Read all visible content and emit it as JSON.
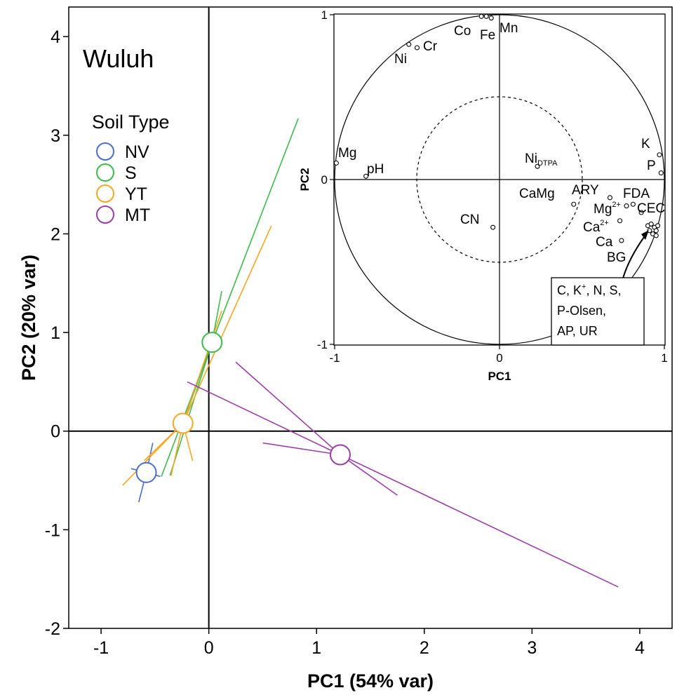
{
  "chart_data": [
    {
      "type": "scatter",
      "title": "Wuluh",
      "xlabel": "PC1 (54% var)",
      "ylabel": "PC2 (20% var)",
      "xlim": [
        -1.3,
        4.3
      ],
      "ylim": [
        -2.0,
        4.3
      ],
      "xticks": [
        -1,
        0,
        1,
        2,
        3,
        4
      ],
      "yticks": [
        -2,
        -1,
        0,
        1,
        2,
        3,
        4
      ],
      "legend": {
        "title": "Soil Type",
        "placement": "top-left"
      },
      "series": [
        {
          "name": "NV",
          "color": "#4a6ec9",
          "centroid": [
            -0.58,
            -0.42
          ],
          "spokes": [
            [
              -0.65,
              -0.72
            ],
            [
              -0.52,
              -0.12
            ],
            [
              -0.72,
              -0.38
            ],
            [
              -0.45,
              -0.46
            ]
          ]
        },
        {
          "name": "S",
          "color": "#3dbb4c",
          "centroid": [
            0.03,
            0.9
          ],
          "spokes": [
            [
              0.83,
              3.17
            ],
            [
              0.12,
              1.42
            ],
            [
              -0.36,
              -0.45
            ],
            [
              -0.44,
              -0.46
            ],
            [
              -0.2,
              0.2
            ]
          ]
        },
        {
          "name": "YT",
          "color": "#f5a623",
          "centroid": [
            -0.24,
            0.08
          ],
          "spokes": [
            [
              0.58,
              2.08
            ],
            [
              0.12,
              1.22
            ],
            [
              -0.8,
              -0.55
            ],
            [
              -0.35,
              -0.45
            ],
            [
              -0.15,
              -0.3
            ],
            [
              -0.6,
              -0.3
            ]
          ]
        },
        {
          "name": "MT",
          "color": "#9b3ea8",
          "centroid": [
            1.22,
            -0.24
          ],
          "spokes": [
            [
              3.8,
              -1.58
            ],
            [
              -0.2,
              0.5
            ],
            [
              0.25,
              0.7
            ],
            [
              1.75,
              -0.65
            ],
            [
              0.5,
              -0.12
            ]
          ]
        }
      ]
    },
    {
      "type": "scatter",
      "title": "",
      "xlabel": "PC1",
      "ylabel": "PC2",
      "xlim": [
        -1,
        1
      ],
      "ylim": [
        -1,
        1
      ],
      "xticks": [
        -1,
        0,
        1
      ],
      "yticks": [
        -1,
        0,
        1
      ],
      "circles": [
        1,
        0.5
      ],
      "points": [
        {
          "label": "Ni",
          "x": -0.55,
          "y": 0.82
        },
        {
          "label": "Cr",
          "x": -0.5,
          "y": 0.8
        },
        {
          "label": "Co",
          "x": -0.11,
          "y": 0.99
        },
        {
          "label": "Fe",
          "x": -0.08,
          "y": 0.99
        },
        {
          "label": "Mn",
          "x": -0.05,
          "y": 0.98
        },
        {
          "label": "Mg",
          "x": -0.99,
          "y": 0.1
        },
        {
          "label": "pH",
          "x": -0.81,
          "y": 0.02
        },
        {
          "label": "NiDTPA",
          "x": 0.23,
          "y": 0.08
        },
        {
          "label": "K",
          "x": 0.97,
          "y": 0.15
        },
        {
          "label": "P",
          "x": 0.98,
          "y": 0.04
        },
        {
          "label": "CaMg",
          "x": 0.45,
          "y": -0.15
        },
        {
          "label": "ARY",
          "x": 0.67,
          "y": -0.11
        },
        {
          "label": "FDA",
          "x": 0.81,
          "y": -0.15
        },
        {
          "label": "Mg2+",
          "x": 0.77,
          "y": -0.16
        },
        {
          "label": "CEC",
          "x": 0.86,
          "y": -0.2
        },
        {
          "label": "Ca2+",
          "x": 0.73,
          "y": -0.25
        },
        {
          "label": "Ca",
          "x": 0.74,
          "y": -0.37
        },
        {
          "label": "BG",
          "x": 0.9,
          "y": -0.28
        },
        {
          "label": "CN",
          "x": -0.04,
          "y": -0.29
        },
        {
          "label": "C",
          "x": 0.92,
          "y": -0.27
        },
        {
          "label": "K+",
          "x": 0.94,
          "y": -0.29
        },
        {
          "label": "N",
          "x": 0.95,
          "y": -0.31
        },
        {
          "label": "S",
          "x": 0.93,
          "y": -0.33
        },
        {
          "label": "P-Olsen",
          "x": 0.96,
          "y": -0.28
        },
        {
          "label": "AP",
          "x": 0.91,
          "y": -0.31
        },
        {
          "label": "UR",
          "x": 0.95,
          "y": -0.34
        }
      ],
      "labels": {
        "Ni": "Ni",
        "Cr": "Cr",
        "Co": "Co",
        "Fe": "Fe",
        "Mn": "Mn",
        "Mg": "Mg",
        "pH": "pH",
        "Ni_main": "Ni",
        "Ni_sub": "DTPA",
        "K": "K",
        "P": "P",
        "CaMg": "CaMg",
        "ARY": "ARY",
        "FDA": "FDA",
        "Mg_main": "Mg",
        "Mg_sup": "2+",
        "CEC": "CEC",
        "Ca_main": "Ca",
        "Ca_sup": "2+",
        "Ca": "Ca",
        "BG": "BG",
        "CN": "CN"
      },
      "callout": {
        "line1_a": "C, K",
        "line1_sup": "+",
        "line1_b": ", N, S,",
        "line2": "P-Olsen,",
        "line3": "AP, UR"
      }
    }
  ]
}
